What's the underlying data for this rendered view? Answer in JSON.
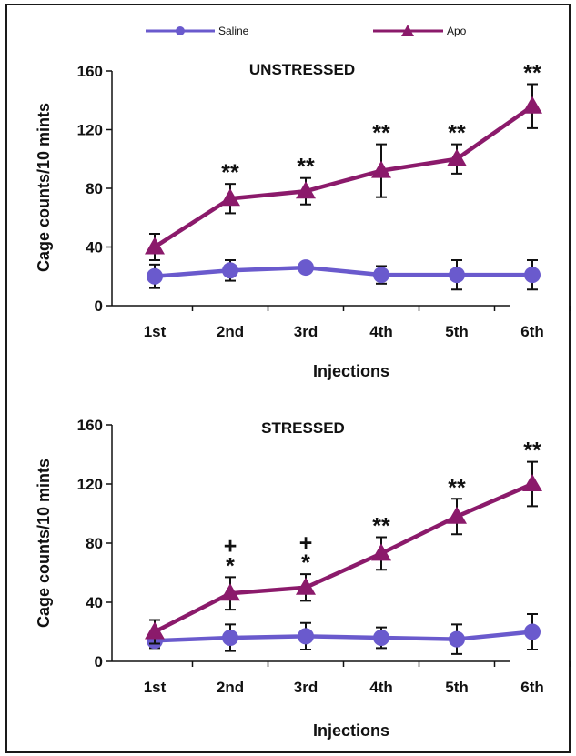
{
  "legend": {
    "saline_label": "Saline",
    "apo_label": "Apo"
  },
  "colors": {
    "saline": "#6a5acd",
    "apo": "#8b1a6b",
    "error": "#111111"
  },
  "chart_data": [
    {
      "type": "line",
      "title": "UNSTRESSED",
      "xlabel": "Injections",
      "ylabel": "Cage counts/10 mints",
      "categories": [
        "1st",
        "2nd",
        "3rd",
        "4th",
        "5th",
        "6th"
      ],
      "ylim": [
        0,
        160
      ],
      "yticks": [
        0,
        40,
        80,
        120,
        160
      ],
      "series": [
        {
          "name": "Saline",
          "marker": "circle",
          "values": [
            20,
            24,
            26,
            21,
            21,
            21
          ],
          "errors": [
            8,
            7,
            0,
            6,
            10,
            10
          ]
        },
        {
          "name": "Apo",
          "marker": "triangle",
          "values": [
            40,
            73,
            78,
            92,
            100,
            136
          ],
          "errors": [
            9,
            10,
            9,
            18,
            10,
            15
          ]
        }
      ],
      "annotations": [
        "",
        "**",
        "**",
        "**",
        "**",
        "**"
      ]
    },
    {
      "type": "line",
      "title": "STRESSED",
      "xlabel": "Injections",
      "ylabel": "Cage counts/10 mints",
      "categories": [
        "1st",
        "2nd",
        "3rd",
        "4th",
        "5th",
        "6th"
      ],
      "ylim": [
        0,
        160
      ],
      "yticks": [
        0,
        40,
        80,
        120,
        160
      ],
      "series": [
        {
          "name": "Saline",
          "marker": "circle",
          "values": [
            14,
            16,
            17,
            16,
            15,
            20
          ],
          "errors": [
            5,
            9,
            9,
            7,
            10,
            12
          ]
        },
        {
          "name": "Apo",
          "marker": "triangle",
          "values": [
            20,
            46,
            50,
            73,
            98,
            120
          ],
          "errors": [
            8,
            11,
            9,
            11,
            12,
            15
          ]
        }
      ],
      "annotations": [
        "",
        "+*",
        "+*",
        "**",
        "**",
        "**"
      ]
    }
  ]
}
